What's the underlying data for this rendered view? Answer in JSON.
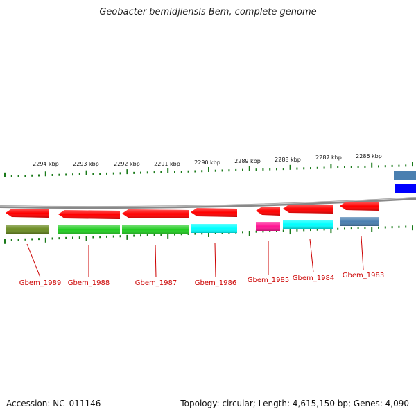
{
  "title": "Geobacter bemidjiensis Bem, complete genome",
  "footer": {
    "accession": "Accession: NC_011146",
    "summary": "Topology: circular; Length: 4,615,150 bp; Genes: 4,090"
  },
  "colors": {
    "red": "#ff0000",
    "green": "#22cc22",
    "olive": "#6b8c22",
    "cyan": "#00ffff",
    "magenta": "#ff1493",
    "steelblue": "#4a7fb0",
    "blue": "#0000ff",
    "tick": "#1a7a1a",
    "label": "#cc0000",
    "backbone": "#888888"
  },
  "scale_labels": [
    "2294 kbp",
    "2293 kbp",
    "2292 kbp",
    "2291 kbp",
    "2290 kbp",
    "2289 kbp",
    "2288 kbp",
    "2287 kbp",
    "2286 kbp"
  ],
  "genes": [
    {
      "label": "Gbem_1989",
      "category_color": "olive"
    },
    {
      "label": "Gbem_1988",
      "category_color": "green"
    },
    {
      "label": "Gbem_1987",
      "category_color": "green"
    },
    {
      "label": "Gbem_1986",
      "category_color": "cyan"
    },
    {
      "label": "Gbem_1985",
      "category_color": "magenta"
    },
    {
      "label": "Gbem_1984",
      "category_color": "cyan"
    },
    {
      "label": "Gbem_1983",
      "category_color": "steelblue"
    }
  ]
}
